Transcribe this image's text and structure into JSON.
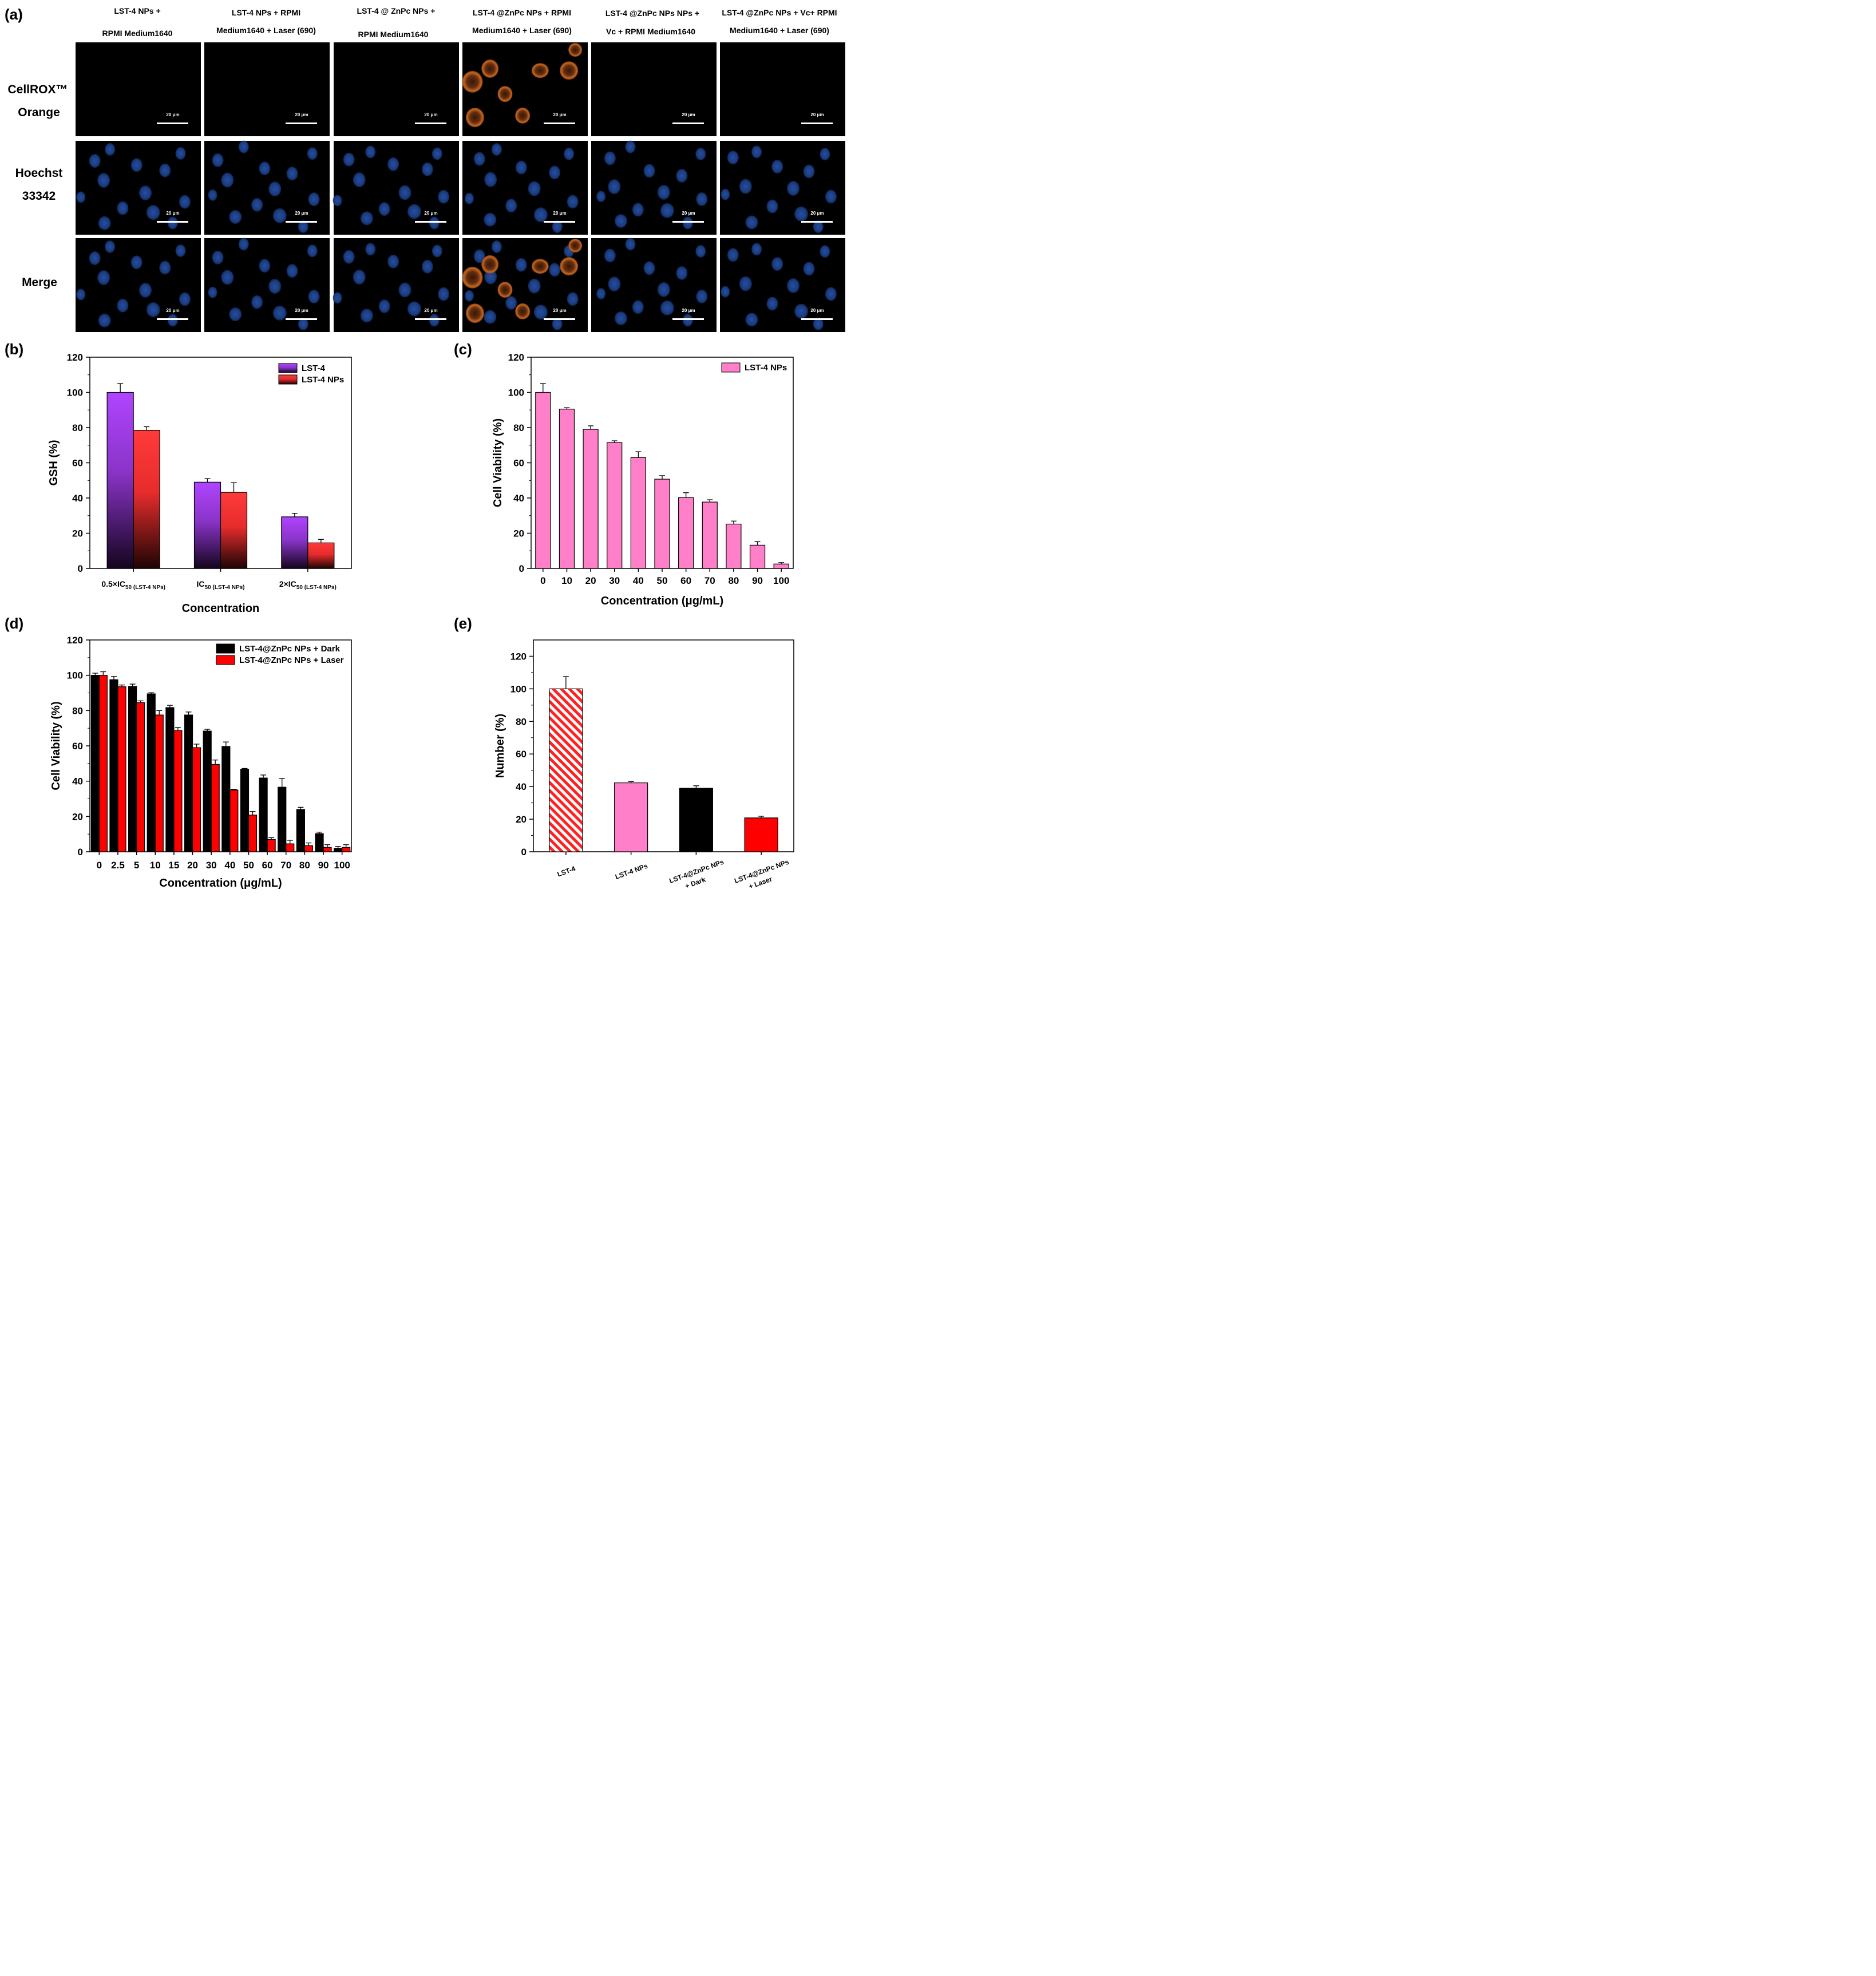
{
  "panel_labels": {
    "a": "(a)",
    "b": "(b)",
    "c": "(c)",
    "d": "(d)",
    "e": "(e)"
  },
  "micrographs": {
    "columns": [
      {
        "line1": "LST-4 NPs +",
        "line2": "RPMI Medium1640"
      },
      {
        "line1": "LST-4 NPs + RPMI",
        "line2": "Medium1640 + Laser (690)"
      },
      {
        "line1": "LST-4 @ ZnPc NPs +",
        "line2": "RPMI Medium1640"
      },
      {
        "line1": "LST-4 @ZnPc  NPs + RPMI",
        "line2": "Medium1640 + Laser (690)"
      },
      {
        "line1": "LST-4 @ZnPc  NPs NPs +",
        "line2": "Vc + RPMI Medium1640"
      },
      {
        "line1": "LST-4 @ZnPc  NPs + Vc+ RPMI",
        "line2": "Medium1640 + Laser (690)"
      }
    ],
    "rows": [
      {
        "line1": "CellROX™",
        "line2": "Orange"
      },
      {
        "line1": "Hoechst",
        "line2": "33342"
      },
      {
        "line1": "Merge",
        "line2": ""
      }
    ],
    "scale_bar_label": "20 μm",
    "colors": {
      "background": "#000000",
      "nucleus": "#1b3d86",
      "ros": "#c8641e"
    }
  },
  "chart_data": [
    {
      "id": "b",
      "type": "bar",
      "title": "",
      "xlabel": "Concentration",
      "ylabel": "GSH (%)",
      "ylim": [
        0,
        120
      ],
      "yticks": [
        0,
        20,
        40,
        60,
        80,
        100,
        120
      ],
      "categories": [
        {
          "main": "0.5×IC",
          "sub": "50",
          "note": " (LST-4 NPs)"
        },
        {
          "main": "IC",
          "sub": "50",
          "note": " (LST-4 NPs)"
        },
        {
          "main": "2×IC",
          "sub": "50",
          "note": " (LST-4 NPs)"
        }
      ],
      "series": [
        {
          "name": "LST-4",
          "values": [
            100,
            49,
            29.3
          ],
          "errors": [
            5,
            2,
            2
          ],
          "color": "#b044ff"
        },
        {
          "name": "LST-4 NPs",
          "values": [
            78.5,
            43.2,
            14.5
          ],
          "errors": [
            2,
            5.5,
            2
          ],
          "color": "#ff3a3a"
        }
      ],
      "legend_position": "top-right"
    },
    {
      "id": "c",
      "type": "bar",
      "title": "",
      "xlabel": "Concentration (μg/mL)",
      "ylabel": "Cell Viability (%)",
      "ylim": [
        0,
        120
      ],
      "yticks": [
        0,
        20,
        40,
        60,
        80,
        100,
        120
      ],
      "categories": [
        "0",
        "10",
        "20",
        "30",
        "40",
        "50",
        "60",
        "70",
        "80",
        "90",
        "100"
      ],
      "series": [
        {
          "name": "LST-4 NPs",
          "values": [
            100,
            90.5,
            79,
            71.5,
            63,
            50.7,
            40.3,
            37.7,
            25.2,
            13.2,
            2.5
          ],
          "errors": [
            5,
            0.8,
            2,
            1,
            3.3,
            2,
            2.7,
            1.3,
            1.7,
            2,
            0.8
          ],
          "color": "#ff80c8"
        }
      ],
      "legend_position": "top-right"
    },
    {
      "id": "d",
      "type": "bar",
      "title": "",
      "xlabel": "Concentration (μg/mL)",
      "ylabel": "Cell Viability (%)",
      "ylim": [
        0,
        120
      ],
      "yticks": [
        0,
        20,
        40,
        60,
        80,
        100,
        120
      ],
      "categories": [
        "0",
        "2.5",
        "5",
        "10",
        "15",
        "20",
        "30",
        "40",
        "50",
        "60",
        "70",
        "80",
        "90",
        "100"
      ],
      "series": [
        {
          "name": "LST-4@ZnPc NPs + Dark",
          "values": [
            100,
            97.5,
            93.7,
            89.5,
            81.7,
            77.5,
            68.4,
            59.7,
            46.8,
            41.8,
            36.6,
            24,
            10.3,
            2
          ],
          "errors": [
            1.2,
            1.8,
            1.3,
            0.6,
            1.3,
            1.7,
            1,
            2.5,
            0.4,
            1.7,
            5,
            1.2,
            0.8,
            1
          ],
          "color": "#000000"
        },
        {
          "name": "LST-4@ZnPc NPs + Laser",
          "values": [
            100,
            93.5,
            84.5,
            77.5,
            68.7,
            59,
            49.5,
            35,
            20.8,
            7,
            4.5,
            3.5,
            2.5,
            2.5
          ],
          "errors": [
            2,
            1,
            1,
            2.5,
            1.7,
            2,
            2.5,
            0.4,
            2,
            1,
            2,
            1.5,
            1.5,
            1.5
          ],
          "color": "#ff0000"
        }
      ],
      "legend_position": "top-right"
    },
    {
      "id": "e",
      "type": "bar",
      "title": "",
      "xlabel": "",
      "ylabel": "Number (%)",
      "ylim": [
        0,
        130
      ],
      "yticks": [
        0,
        20,
        40,
        60,
        80,
        100,
        120
      ],
      "categories": [
        {
          "line1": "LST-4",
          "line2": ""
        },
        {
          "line1": "LST-4 NPs",
          "line2": ""
        },
        {
          "line1": "LST-4@ZnPc NPs",
          "line2": "+ Dark"
        },
        {
          "line1": "LST-4@ZnPc NPs",
          "line2": "+ Laser"
        }
      ],
      "series": [
        {
          "name": "Number",
          "values": [
            100,
            42.3,
            39,
            20.8
          ],
          "errors": [
            7.5,
            0.8,
            1.5,
            1
          ],
          "colors": [
            "#ff2020",
            "#ff80c8",
            "#000000",
            "#ff0000"
          ],
          "patterns": [
            "hatched",
            "solid",
            "solid",
            "solid"
          ]
        }
      ]
    }
  ]
}
